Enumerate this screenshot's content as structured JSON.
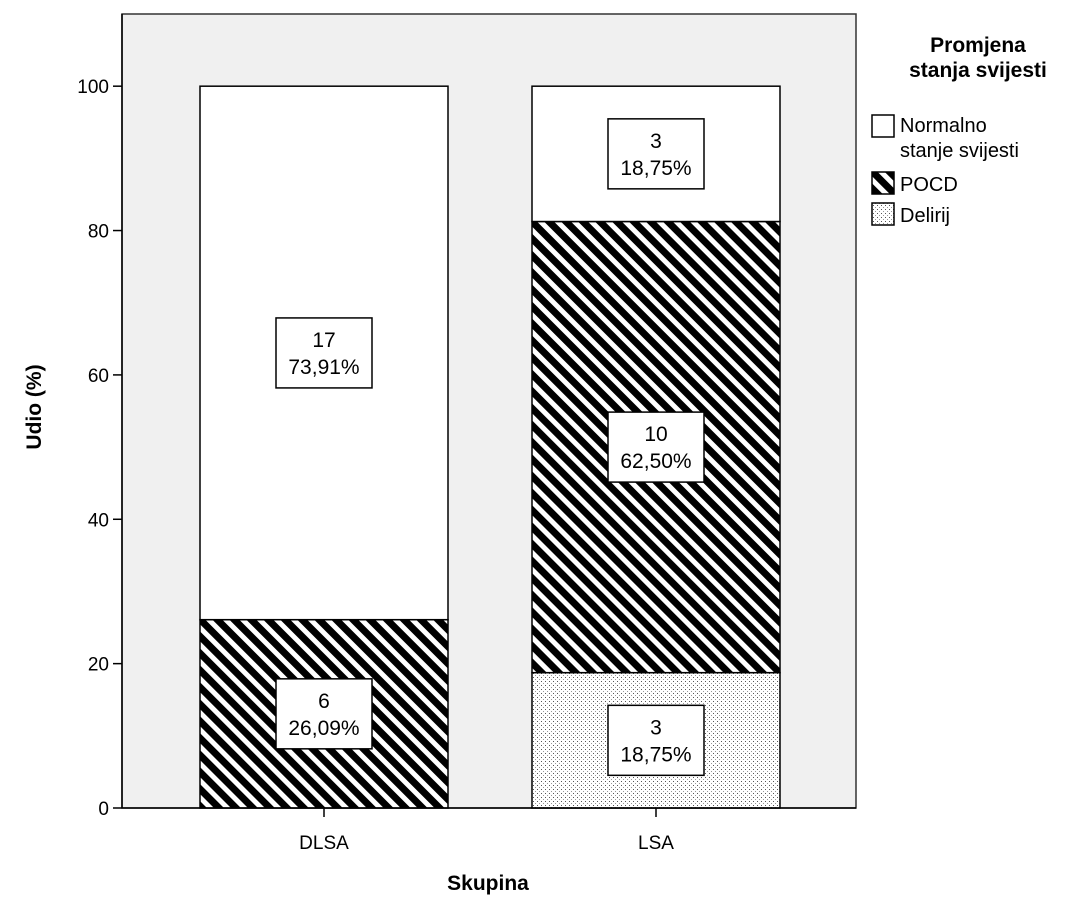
{
  "chart_data": {
    "type": "bar",
    "stacked": true,
    "xlabel": "Skupina",
    "ylabel": "Udio (%)",
    "ylim": [
      0,
      110
    ],
    "yticks": [
      0,
      20,
      40,
      60,
      80,
      100
    ],
    "grid": false,
    "legend_position": "top-right",
    "legend_title": "Promjena stanja svijesti",
    "categories": [
      "DLSA",
      "LSA"
    ],
    "series": [
      {
        "name": "Delirij",
        "pattern": "dots",
        "values": [
          0,
          18.75
        ],
        "counts": [
          "",
          "3"
        ],
        "labels": [
          "",
          "18,75%"
        ]
      },
      {
        "name": "POCD",
        "pattern": "diagonal-hatch",
        "values": [
          26.09,
          62.5
        ],
        "counts": [
          "6",
          "10"
        ],
        "labels": [
          "26,09%",
          "62,50%"
        ]
      },
      {
        "name": "Normalno stanje svijesti",
        "pattern": "solid-white",
        "values": [
          73.91,
          18.75
        ],
        "counts": [
          "17",
          "3"
        ],
        "labels": [
          "73,91%",
          "18,75%"
        ]
      }
    ],
    "legend_order": [
      "Normalno stanje svijesti",
      "POCD",
      "Delirij"
    ],
    "colors": {
      "plot_background": "#f0f0f0",
      "bar_fill": "#ffffff",
      "hatch": "#000000",
      "axis": "#000000"
    }
  }
}
